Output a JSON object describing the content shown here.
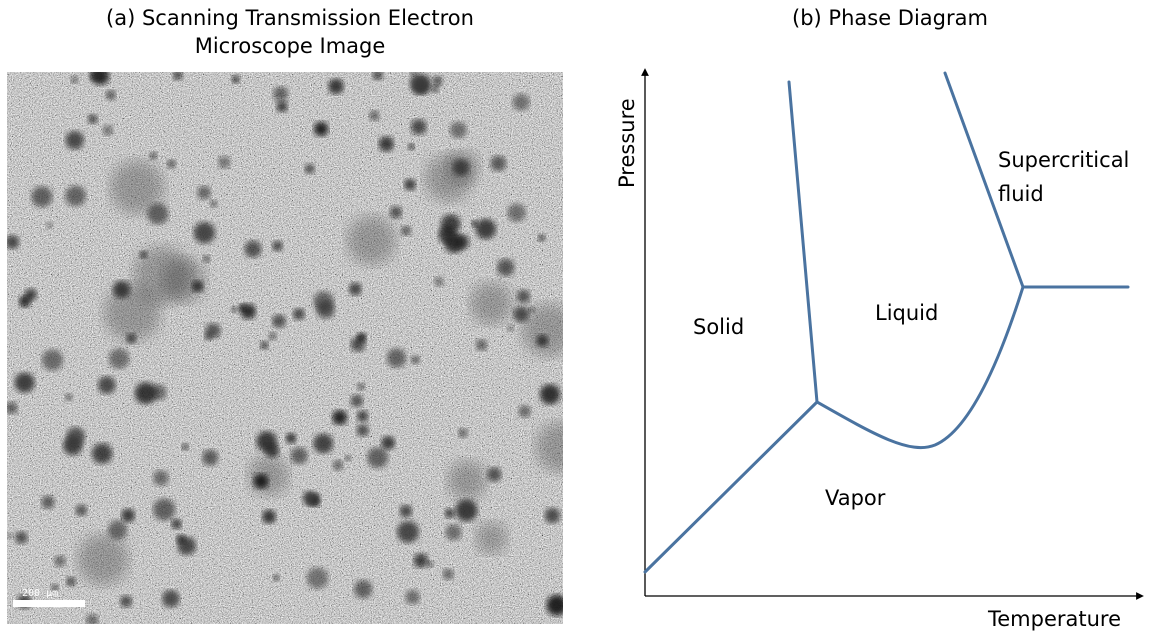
{
  "panel_a": {
    "title_line1": "(a) Scanning Transmission Electron",
    "title_line2": "Microscope Image",
    "scale_bar_label": "200 μm"
  },
  "panel_b": {
    "title": "(b) Phase Diagram",
    "x_axis_label": "Temperature",
    "y_axis_label": "Pressure",
    "regions": {
      "solid": "Solid",
      "liquid": "Liquid",
      "vapor": "Vapor",
      "supercritical_line1": "Supercritical",
      "supercritical_line2": "fluid"
    },
    "curve_color": "#4a73a0"
  }
}
